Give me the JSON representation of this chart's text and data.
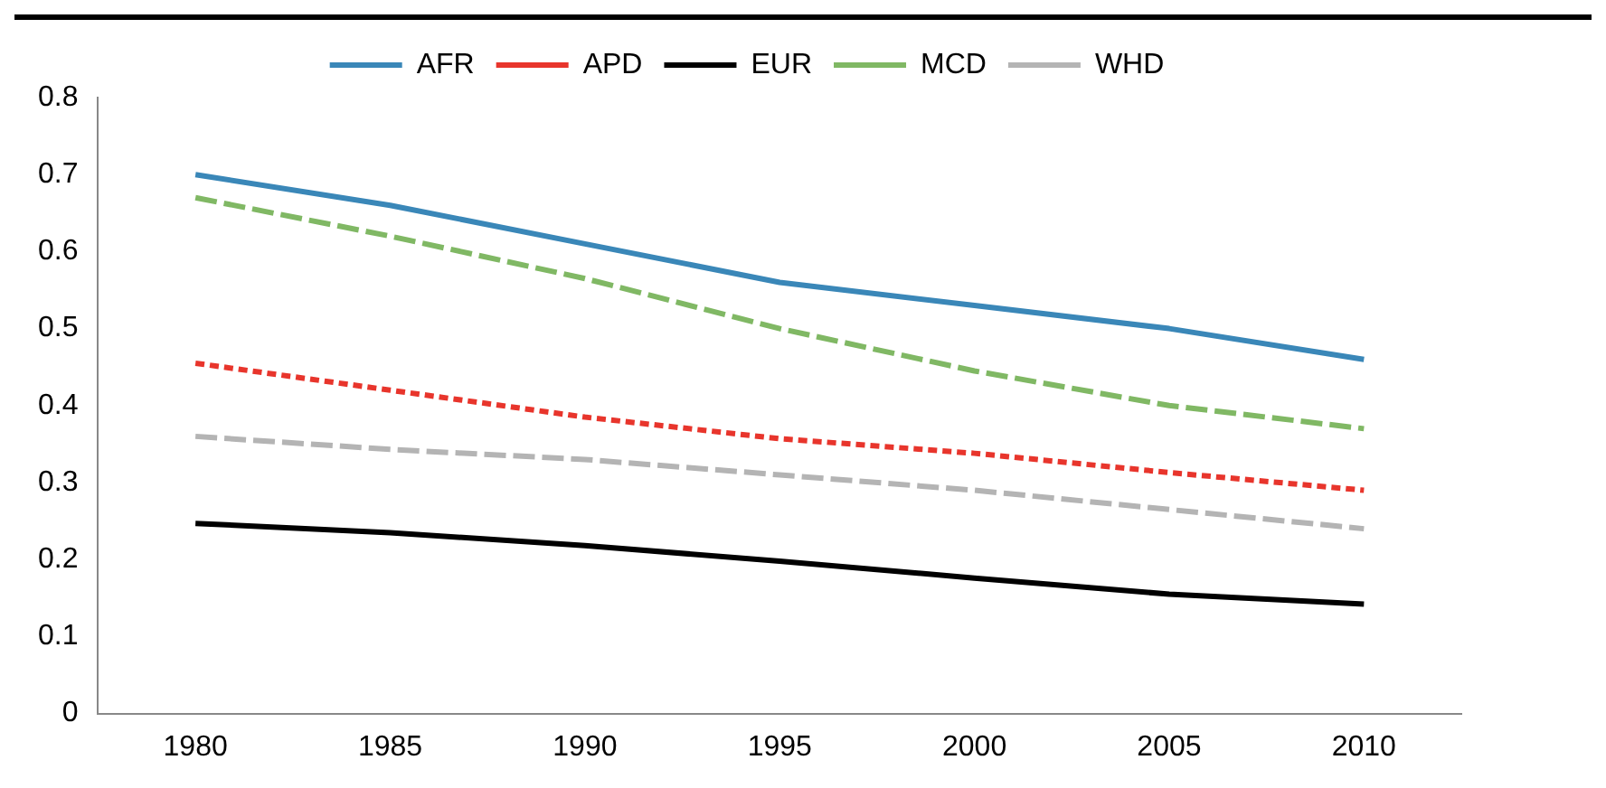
{
  "chart_data": {
    "type": "line",
    "categories": [
      "1980",
      "1985",
      "1990",
      "1995",
      "2000",
      "2005",
      "2010"
    ],
    "series": [
      {
        "name": "AFR",
        "color": "#3a87b8",
        "line_style": "solid",
        "values": [
          0.7,
          0.66,
          0.61,
          0.56,
          0.53,
          0.5,
          0.46
        ]
      },
      {
        "name": "APD",
        "color": "#e8352c",
        "line_style": "dotted",
        "values": [
          0.455,
          0.42,
          0.385,
          0.357,
          0.338,
          0.313,
          0.29
        ]
      },
      {
        "name": "EUR",
        "color": "#000000",
        "line_style": "solid",
        "values": [
          0.247,
          0.235,
          0.218,
          0.198,
          0.176,
          0.155,
          0.142
        ]
      },
      {
        "name": "MCD",
        "color": "#80b864",
        "line_style": "dashed",
        "values": [
          0.67,
          0.62,
          0.565,
          0.5,
          0.445,
          0.4,
          0.37
        ]
      },
      {
        "name": "WHD",
        "color": "#b4b4b4",
        "line_style": "dashed",
        "values": [
          0.36,
          0.343,
          0.33,
          0.31,
          0.29,
          0.265,
          0.24
        ]
      }
    ],
    "ylim": [
      0,
      0.8
    ],
    "yticks": [
      0,
      0.1,
      0.2,
      0.3,
      0.4,
      0.5,
      0.6,
      0.7,
      0.8
    ],
    "grid": false,
    "legend": "top",
    "marker": "none"
  }
}
